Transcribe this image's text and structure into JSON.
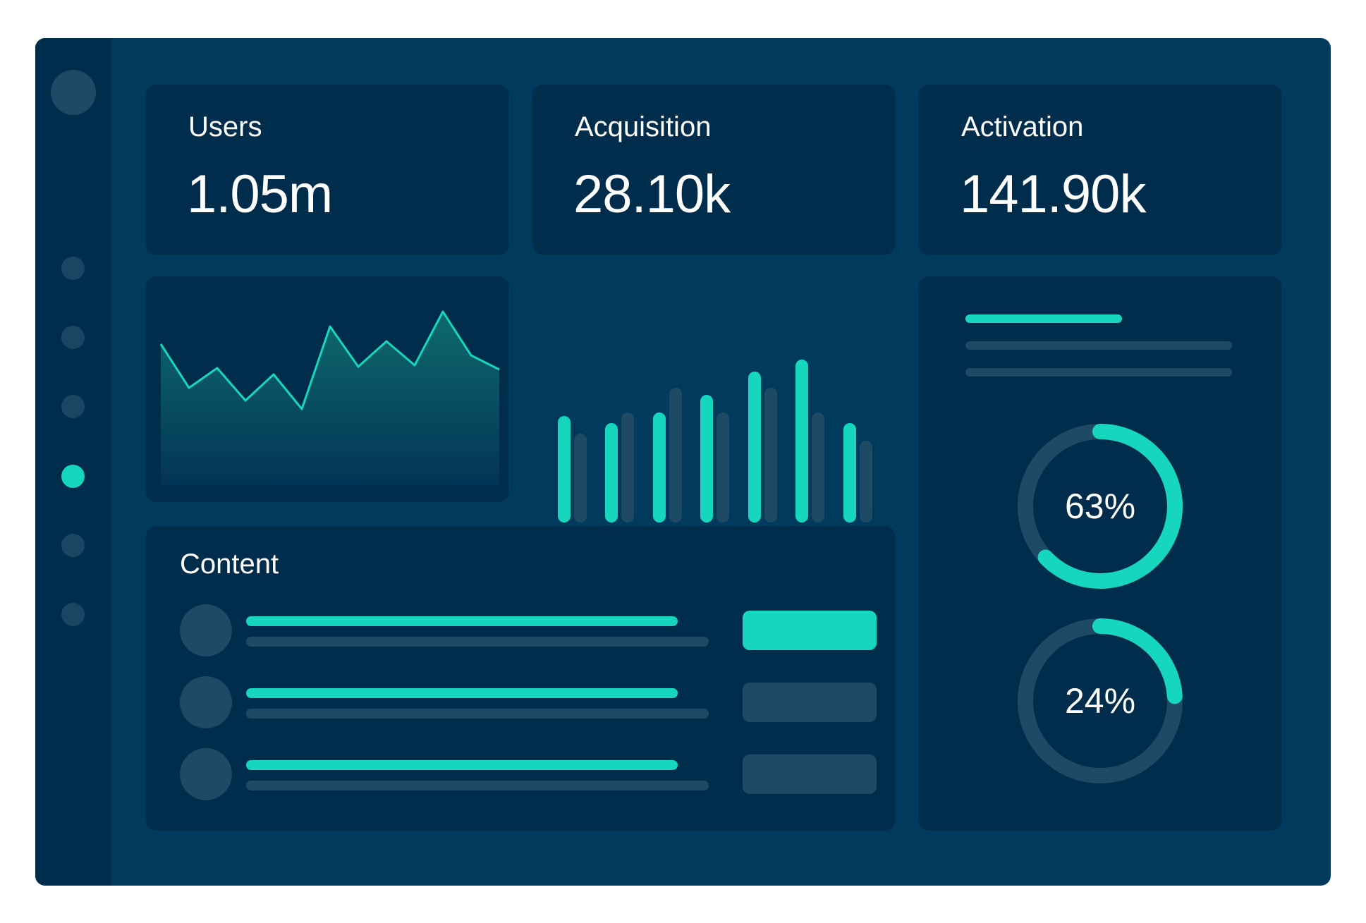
{
  "stats": [
    {
      "label": "Users",
      "value": "1.05m"
    },
    {
      "label": "Acquisition",
      "value": "28.10k"
    },
    {
      "label": "Activation",
      "value": "141.90k"
    }
  ],
  "content": {
    "title": "Content",
    "rows": [
      {
        "button_state": "active"
      },
      {
        "button_state": "inactive"
      },
      {
        "button_state": "inactive"
      }
    ]
  },
  "progress": {
    "donuts": [
      {
        "percent": 63,
        "label": "63%"
      },
      {
        "percent": 24,
        "label": "24%"
      }
    ]
  },
  "sidebar": {
    "active_index": 3,
    "item_count": 6
  },
  "colors": {
    "background": "#003a5d",
    "panel": "#002d4c",
    "accent": "#16d7be",
    "muted": "#1f4a66"
  },
  "icons": {
    "area_chart": "area-chart-icon",
    "bar_chart": "bar-chart-icon"
  }
}
